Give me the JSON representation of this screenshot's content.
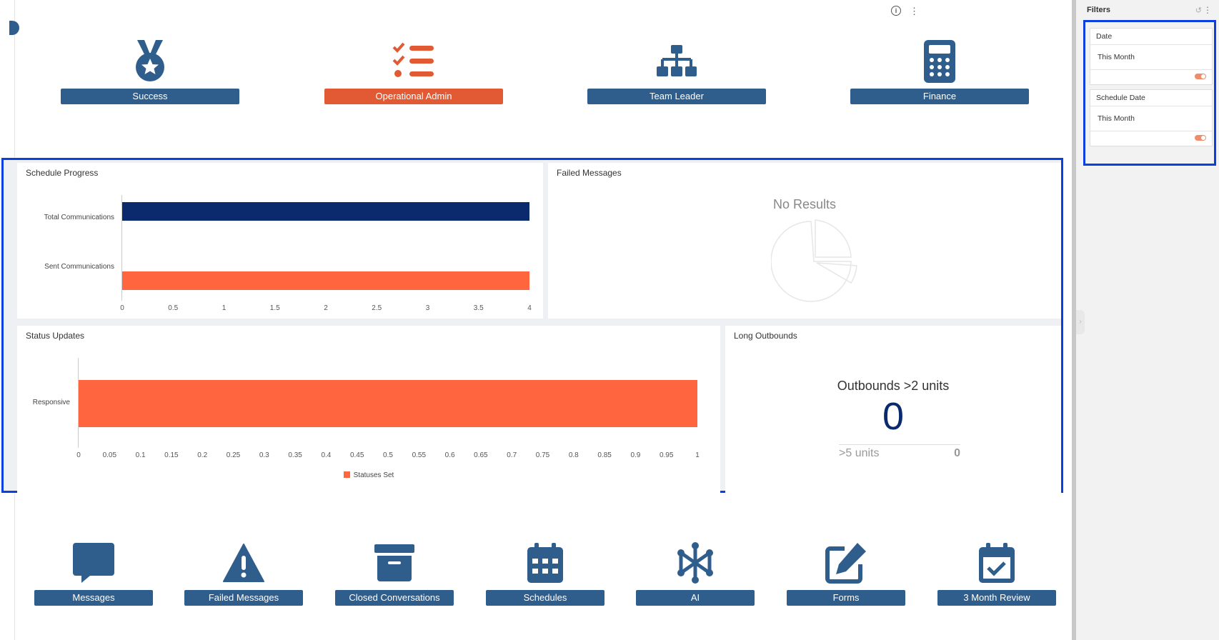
{
  "top_tiles": [
    {
      "label": "Success",
      "icon": "medal-icon"
    },
    {
      "label": "Operational Admin",
      "icon": "checklist-icon"
    },
    {
      "label": "Team Leader",
      "icon": "org-chart-icon"
    },
    {
      "label": "Finance",
      "icon": "calculator-icon"
    }
  ],
  "bottom_tiles": [
    {
      "label": "Messages",
      "icon": "message-bubble-icon"
    },
    {
      "label": "Failed Messages",
      "icon": "warning-icon"
    },
    {
      "label": "Closed Conversations",
      "icon": "archive-box-icon"
    },
    {
      "label": "Schedules",
      "icon": "calendar-icon"
    },
    {
      "label": "AI",
      "icon": "ai-network-icon"
    },
    {
      "label": "Forms",
      "icon": "edit-form-icon"
    },
    {
      "label": "3 Month Review",
      "icon": "calendar-check-icon"
    }
  ],
  "schedule_progress": {
    "title": "Schedule Progress"
  },
  "failed_messages": {
    "title": "Failed Messages",
    "empty_text": "No Results"
  },
  "status_updates": {
    "title": "Status Updates"
  },
  "long_outbounds": {
    "title": "Long Outbounds",
    "kpi_label": "Outbounds >2 units",
    "kpi_value": "0",
    "sub_label": ">5 units",
    "sub_value": "0"
  },
  "filters": {
    "title": "Filters",
    "items": [
      {
        "label": "Date",
        "value": "This Month"
      },
      {
        "label": "Schedule Date",
        "value": "This Month"
      }
    ]
  },
  "colors": {
    "navy": "#0b2a6e",
    "orange": "#ff6640",
    "button_blue": "#2f5e8c",
    "button_orange": "#e25a33"
  },
  "chart_data": [
    {
      "type": "bar",
      "orientation": "horizontal",
      "title": "Schedule Progress",
      "categories": [
        "Total Communications",
        "Sent Communications"
      ],
      "values": [
        4,
        4
      ],
      "colors": [
        "#0b2a6e",
        "#ff6640"
      ],
      "xlim": [
        0,
        4
      ],
      "xticks": [
        "0",
        "0.5",
        "1",
        "1.5",
        "2",
        "2.5",
        "3",
        "3.5",
        "4"
      ]
    },
    {
      "type": "bar",
      "orientation": "horizontal",
      "title": "Status Updates",
      "categories": [
        "Responsive"
      ],
      "series": [
        {
          "name": "Statuses Set",
          "values": [
            1
          ],
          "color": "#ff6640"
        }
      ],
      "xlim": [
        0,
        1
      ],
      "xticks": [
        "0",
        "0.05",
        "0.1",
        "0.15",
        "0.2",
        "0.25",
        "0.3",
        "0.35",
        "0.4",
        "0.45",
        "0.5",
        "0.55",
        "0.6",
        "0.65",
        "0.7",
        "0.75",
        "0.8",
        "0.85",
        "0.9",
        "0.95",
        "1"
      ],
      "legend": "bottom"
    }
  ]
}
